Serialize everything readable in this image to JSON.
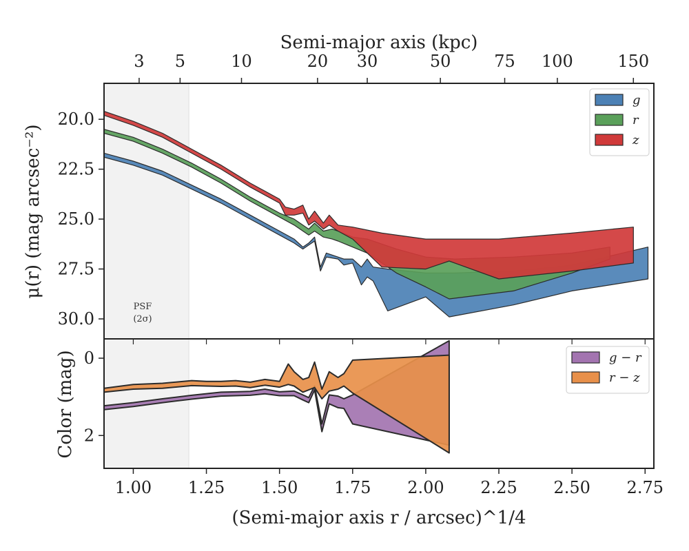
{
  "chart_data": [
    {
      "panel": "surface-brightness",
      "type": "area",
      "ylabel": "μ(r) (mag arcsec⁻²)",
      "xlabel_top": "Semi-major axis (kpc)",
      "xlim": [
        0.9,
        2.78
      ],
      "ylim": [
        31.0,
        18.2
      ],
      "y_inverted": true,
      "xticks": [
        1.0,
        1.25,
        1.5,
        1.75,
        2.0,
        2.25,
        2.5,
        2.75
      ],
      "yticks": [
        20.0,
        22.5,
        25.0,
        27.5,
        30.0
      ],
      "yticklabels": [
        "20.0",
        "22.5",
        "25.0",
        "27.5",
        "30.0"
      ],
      "top_axis_ticks": [
        {
          "label": "3",
          "x": 1.02
        },
        {
          "label": "5",
          "x": 1.16
        },
        {
          "label": "10",
          "x": 1.37
        },
        {
          "label": "20",
          "x": 1.63
        },
        {
          "label": "30",
          "x": 1.8
        },
        {
          "label": "50",
          "x": 2.05
        },
        {
          "label": "75",
          "x": 2.27
        },
        {
          "label": "100",
          "x": 2.45
        },
        {
          "label": "150",
          "x": 2.71
        }
      ],
      "shaded_region": {
        "x": [
          0.9,
          1.19
        ],
        "label_lines": [
          "PSF",
          "(2σ)"
        ]
      },
      "legend_position": "top-right",
      "series": [
        {
          "name": "g",
          "color": "#4c81b5",
          "upper": [
            [
              0.9,
              21.7
            ],
            [
              1.0,
              22.1
            ],
            [
              1.1,
              22.6
            ],
            [
              1.2,
              23.3
            ],
            [
              1.3,
              24.0
            ],
            [
              1.4,
              24.8
            ],
            [
              1.5,
              25.6
            ],
            [
              1.55,
              26.0
            ],
            [
              1.58,
              26.4
            ],
            [
              1.6,
              26.2
            ],
            [
              1.62,
              25.9
            ],
            [
              1.64,
              27.4
            ],
            [
              1.66,
              26.7
            ],
            [
              1.7,
              26.9
            ],
            [
              1.72,
              27.0
            ],
            [
              1.75,
              27.0
            ],
            [
              1.78,
              27.4
            ],
            [
              1.8,
              27.0
            ],
            [
              1.82,
              27.4
            ],
            [
              1.87,
              27.5
            ],
            [
              2.0,
              27.7
            ],
            [
              2.1,
              27.7
            ],
            [
              2.3,
              27.6
            ],
            [
              2.5,
              27.3
            ],
            [
              2.76,
              26.4
            ]
          ],
          "lower": [
            [
              0.9,
              21.9
            ],
            [
              1.0,
              22.3
            ],
            [
              1.1,
              22.8
            ],
            [
              1.2,
              23.5
            ],
            [
              1.3,
              24.2
            ],
            [
              1.4,
              25.0
            ],
            [
              1.5,
              25.8
            ],
            [
              1.55,
              26.2
            ],
            [
              1.58,
              26.5
            ],
            [
              1.6,
              26.3
            ],
            [
              1.62,
              26.1
            ],
            [
              1.64,
              27.6
            ],
            [
              1.66,
              26.9
            ],
            [
              1.7,
              27.0
            ],
            [
              1.72,
              27.3
            ],
            [
              1.75,
              27.2
            ],
            [
              1.78,
              28.3
            ],
            [
              1.8,
              27.9
            ],
            [
              1.82,
              28.1
            ],
            [
              1.87,
              29.6
            ],
            [
              2.0,
              28.9
            ],
            [
              2.08,
              29.9
            ],
            [
              2.3,
              29.3
            ],
            [
              2.5,
              28.6
            ],
            [
              2.76,
              28.0
            ]
          ]
        },
        {
          "name": "r",
          "color": "#5aa05a",
          "upper": [
            [
              0.9,
              20.5
            ],
            [
              1.0,
              20.9
            ],
            [
              1.1,
              21.5
            ],
            [
              1.2,
              22.2
            ],
            [
              1.3,
              23.0
            ],
            [
              1.4,
              23.9
            ],
            [
              1.5,
              24.7
            ],
            [
              1.55,
              25.0
            ],
            [
              1.6,
              25.5
            ],
            [
              1.62,
              25.2
            ],
            [
              1.65,
              25.6
            ],
            [
              1.68,
              25.5
            ],
            [
              1.7,
              25.6
            ],
            [
              1.75,
              25.9
            ],
            [
              1.8,
              26.0
            ],
            [
              1.9,
              26.5
            ],
            [
              2.0,
              26.9
            ],
            [
              2.1,
              27.0
            ],
            [
              2.3,
              26.9
            ],
            [
              2.5,
              26.7
            ],
            [
              2.63,
              26.4
            ]
          ],
          "lower": [
            [
              0.9,
              20.7
            ],
            [
              1.0,
              21.1
            ],
            [
              1.1,
              21.7
            ],
            [
              1.2,
              22.4
            ],
            [
              1.3,
              23.2
            ],
            [
              1.4,
              24.1
            ],
            [
              1.5,
              24.9
            ],
            [
              1.55,
              25.3
            ],
            [
              1.6,
              25.8
            ],
            [
              1.62,
              25.6
            ],
            [
              1.65,
              25.9
            ],
            [
              1.68,
              26.0
            ],
            [
              1.7,
              26.1
            ],
            [
              1.75,
              26.4
            ],
            [
              1.8,
              26.7
            ],
            [
              1.9,
              27.7
            ],
            [
              2.0,
              28.4
            ],
            [
              2.08,
              29.0
            ],
            [
              2.3,
              28.6
            ],
            [
              2.5,
              27.7
            ],
            [
              2.63,
              27.0
            ]
          ]
        },
        {
          "name": "z",
          "color": "#d03a3a",
          "upper": [
            [
              0.9,
              19.6
            ],
            [
              1.0,
              20.1
            ],
            [
              1.1,
              20.7
            ],
            [
              1.2,
              21.5
            ],
            [
              1.3,
              22.3
            ],
            [
              1.4,
              23.2
            ],
            [
              1.5,
              24.0
            ],
            [
              1.52,
              24.4
            ],
            [
              1.55,
              24.5
            ],
            [
              1.58,
              24.3
            ],
            [
              1.6,
              25.0
            ],
            [
              1.62,
              24.6
            ],
            [
              1.65,
              25.2
            ],
            [
              1.67,
              24.8
            ],
            [
              1.7,
              25.3
            ],
            [
              1.75,
              25.4
            ],
            [
              1.85,
              25.7
            ],
            [
              2.0,
              26.0
            ],
            [
              2.08,
              26.0
            ],
            [
              2.25,
              26.0
            ],
            [
              2.5,
              25.7
            ],
            [
              2.71,
              25.4
            ]
          ],
          "lower": [
            [
              0.9,
              19.8
            ],
            [
              1.0,
              20.3
            ],
            [
              1.1,
              20.9
            ],
            [
              1.2,
              21.7
            ],
            [
              1.3,
              22.5
            ],
            [
              1.4,
              23.4
            ],
            [
              1.5,
              24.2
            ],
            [
              1.52,
              24.8
            ],
            [
              1.55,
              24.8
            ],
            [
              1.58,
              24.7
            ],
            [
              1.6,
              25.3
            ],
            [
              1.62,
              25.1
            ],
            [
              1.65,
              25.5
            ],
            [
              1.67,
              25.3
            ],
            [
              1.7,
              25.6
            ],
            [
              1.75,
              26.0
            ],
            [
              1.85,
              27.4
            ],
            [
              2.0,
              27.5
            ],
            [
              2.08,
              27.1
            ],
            [
              2.25,
              28.0
            ],
            [
              2.5,
              27.6
            ],
            [
              2.71,
              27.2
            ]
          ]
        }
      ]
    },
    {
      "panel": "color",
      "type": "area",
      "ylabel": "Color (mag)",
      "xlabel": "(Semi-major axis r / arcsec)^1/4",
      "xlim": [
        0.9,
        2.78
      ],
      "ylim": [
        -0.5,
        2.85
      ],
      "xticks": [
        1.0,
        1.25,
        1.5,
        1.75,
        2.0,
        2.25,
        2.5,
        2.75
      ],
      "xticklabels": [
        "1.00",
        "1.25",
        "1.50",
        "1.75",
        "2.00",
        "2.25",
        "2.50",
        "2.75"
      ],
      "yticks": [
        0,
        2
      ],
      "yticklabels": [
        "0",
        "2"
      ],
      "shaded_region": {
        "x": [
          0.9,
          1.19
        ]
      },
      "legend_position": "top-right",
      "series": [
        {
          "name": "g − r",
          "color": "#a374b0",
          "upper": [
            [
              0.9,
              1.33
            ],
            [
              1.0,
              1.25
            ],
            [
              1.1,
              1.15
            ],
            [
              1.2,
              1.06
            ],
            [
              1.3,
              0.98
            ],
            [
              1.35,
              0.97
            ],
            [
              1.4,
              0.96
            ],
            [
              1.45,
              0.92
            ],
            [
              1.5,
              0.97
            ],
            [
              1.55,
              0.97
            ],
            [
              1.58,
              1.08
            ],
            [
              1.6,
              1.15
            ],
            [
              1.62,
              0.82
            ],
            [
              1.645,
              1.9
            ],
            [
              1.67,
              1.18
            ],
            [
              1.7,
              1.28
            ],
            [
              1.72,
              1.3
            ],
            [
              1.75,
              1.7
            ],
            [
              2.08,
              2.25
            ]
          ],
          "lower": [
            [
              0.9,
              1.23
            ],
            [
              1.0,
              1.15
            ],
            [
              1.1,
              1.05
            ],
            [
              1.2,
              0.96
            ],
            [
              1.3,
              0.88
            ],
            [
              1.35,
              0.87
            ],
            [
              1.4,
              0.86
            ],
            [
              1.45,
              0.8
            ],
            [
              1.5,
              0.87
            ],
            [
              1.55,
              0.85
            ],
            [
              1.58,
              0.95
            ],
            [
              1.6,
              1.02
            ],
            [
              1.62,
              0.72
            ],
            [
              1.645,
              1.7
            ],
            [
              1.67,
              0.95
            ],
            [
              1.7,
              0.98
            ],
            [
              1.72,
              1.05
            ],
            [
              1.75,
              0.95
            ],
            [
              2.08,
              -0.45
            ]
          ]
        },
        {
          "name": "r − z",
          "color": "#e8904a",
          "upper": [
            [
              0.9,
              0.88
            ],
            [
              1.0,
              0.8
            ],
            [
              1.1,
              0.78
            ],
            [
              1.2,
              0.71
            ],
            [
              1.25,
              0.72
            ],
            [
              1.3,
              0.73
            ],
            [
              1.35,
              0.72
            ],
            [
              1.4,
              0.76
            ],
            [
              1.45,
              0.7
            ],
            [
              1.5,
              0.75
            ],
            [
              1.53,
              0.68
            ],
            [
              1.55,
              0.72
            ],
            [
              1.58,
              0.88
            ],
            [
              1.6,
              0.82
            ],
            [
              1.62,
              0.76
            ],
            [
              1.645,
              1.05
            ],
            [
              1.67,
              0.85
            ],
            [
              1.7,
              0.8
            ],
            [
              1.72,
              0.72
            ],
            [
              1.75,
              0.9
            ],
            [
              2.08,
              2.45
            ]
          ],
          "lower": [
            [
              0.9,
              0.78
            ],
            [
              1.0,
              0.68
            ],
            [
              1.1,
              0.65
            ],
            [
              1.2,
              0.58
            ],
            [
              1.25,
              0.6
            ],
            [
              1.3,
              0.6
            ],
            [
              1.35,
              0.58
            ],
            [
              1.4,
              0.62
            ],
            [
              1.45,
              0.55
            ],
            [
              1.5,
              0.6
            ],
            [
              1.53,
              0.15
            ],
            [
              1.55,
              0.35
            ],
            [
              1.58,
              0.55
            ],
            [
              1.6,
              0.5
            ],
            [
              1.62,
              0.1
            ],
            [
              1.645,
              0.8
            ],
            [
              1.67,
              0.35
            ],
            [
              1.7,
              0.5
            ],
            [
              1.72,
              0.4
            ],
            [
              1.75,
              0.05
            ],
            [
              2.08,
              -0.08
            ]
          ]
        }
      ]
    }
  ]
}
